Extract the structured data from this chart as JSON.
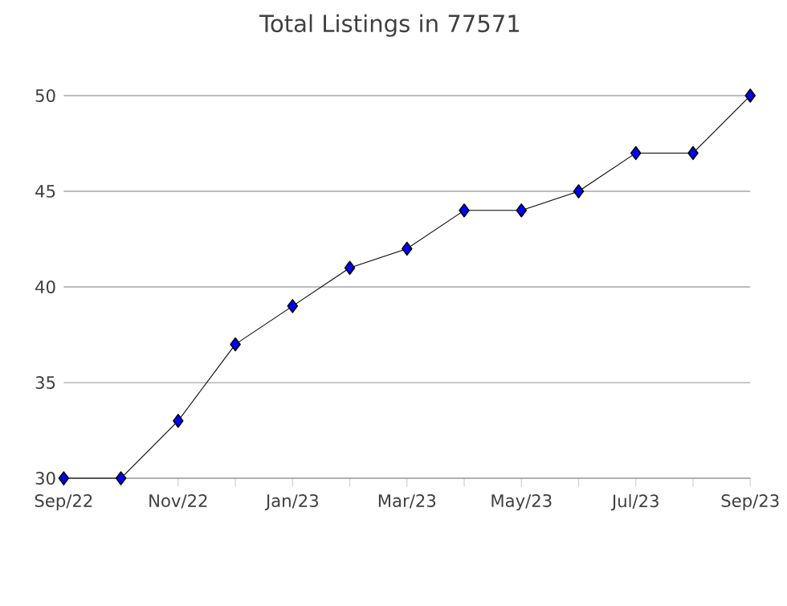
{
  "chart_data": {
    "type": "line",
    "title": "Total Listings in 77571",
    "categories": [
      "Sep/22",
      null,
      "Nov/22",
      null,
      "Jan/23",
      null,
      "Mar/23",
      null,
      "May/23",
      null,
      "Jul/23",
      null,
      "Sep/23"
    ],
    "series": [
      {
        "color": "#0000ff",
        "values": [
          30,
          30,
          33,
          37,
          39,
          41,
          42,
          44,
          44,
          45,
          47,
          47,
          50
        ]
      }
    ],
    "ylim": [
      30,
      50
    ],
    "yticks": [
      30,
      35,
      40,
      45,
      50
    ],
    "grid": "y",
    "marker": "diamond",
    "line_style": "solid"
  }
}
